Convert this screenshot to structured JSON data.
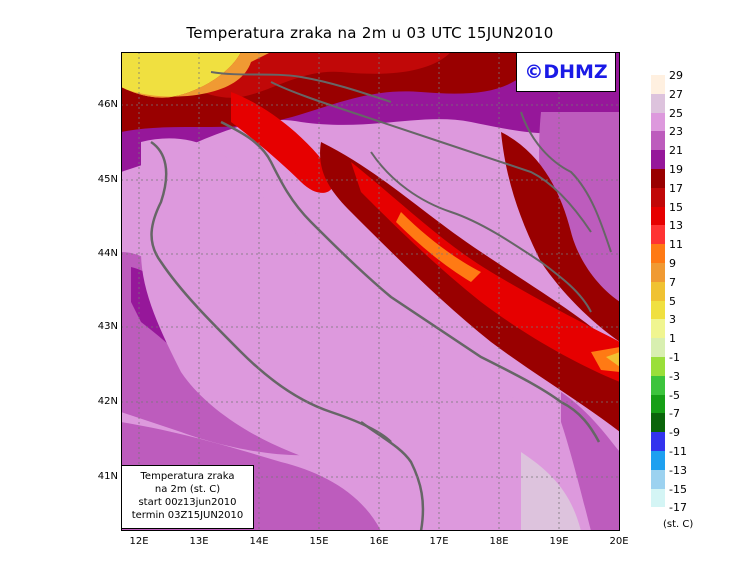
{
  "title": "Temperatura zraka na 2m u 03 UTC 15JUN2010",
  "logo": "©DHMZ",
  "info_box": {
    "line1": "Temperatura zraka",
    "line2": "na 2m (st. C)",
    "line3": "start 00z13jun2010",
    "line4": "termin 03Z15JUN2010"
  },
  "lat_labels": [
    "46N",
    "45N",
    "44N",
    "43N",
    "42N",
    "41N"
  ],
  "lon_labels": [
    "12E",
    "13E",
    "14E",
    "15E",
    "16E",
    "17E",
    "18E",
    "19E",
    "20E"
  ],
  "legend": {
    "ticks": [
      "29",
      "27",
      "25",
      "23",
      "21",
      "19",
      "17",
      "15",
      "13",
      "11",
      "9",
      "7",
      "5",
      "3",
      "1",
      "-1",
      "-3",
      "-5",
      "-7",
      "-9",
      "-11",
      "-13",
      "-15",
      "-17"
    ],
    "colors": [
      "#fff0e0",
      "#ddc3dd",
      "#dd99dd",
      "#bd5cbd",
      "#96179a",
      "#990000",
      "#c10808",
      "#e60000",
      "#ff3333",
      "#ff7a14",
      "#f09a33",
      "#f0c232",
      "#f0e040",
      "#f0f590",
      "#d8efb0",
      "#9adf3a",
      "#3cc43c",
      "#169f16",
      "#0a640a",
      "#3333ee",
      "#1ea0f0",
      "#9cd2f0",
      "#d4f5f5",
      "#ffffff"
    ],
    "unit": "(st. C)"
  },
  "map": {
    "sea_color": "#dd99dd",
    "coast_color": "#666666",
    "grid_color": "#777777"
  }
}
